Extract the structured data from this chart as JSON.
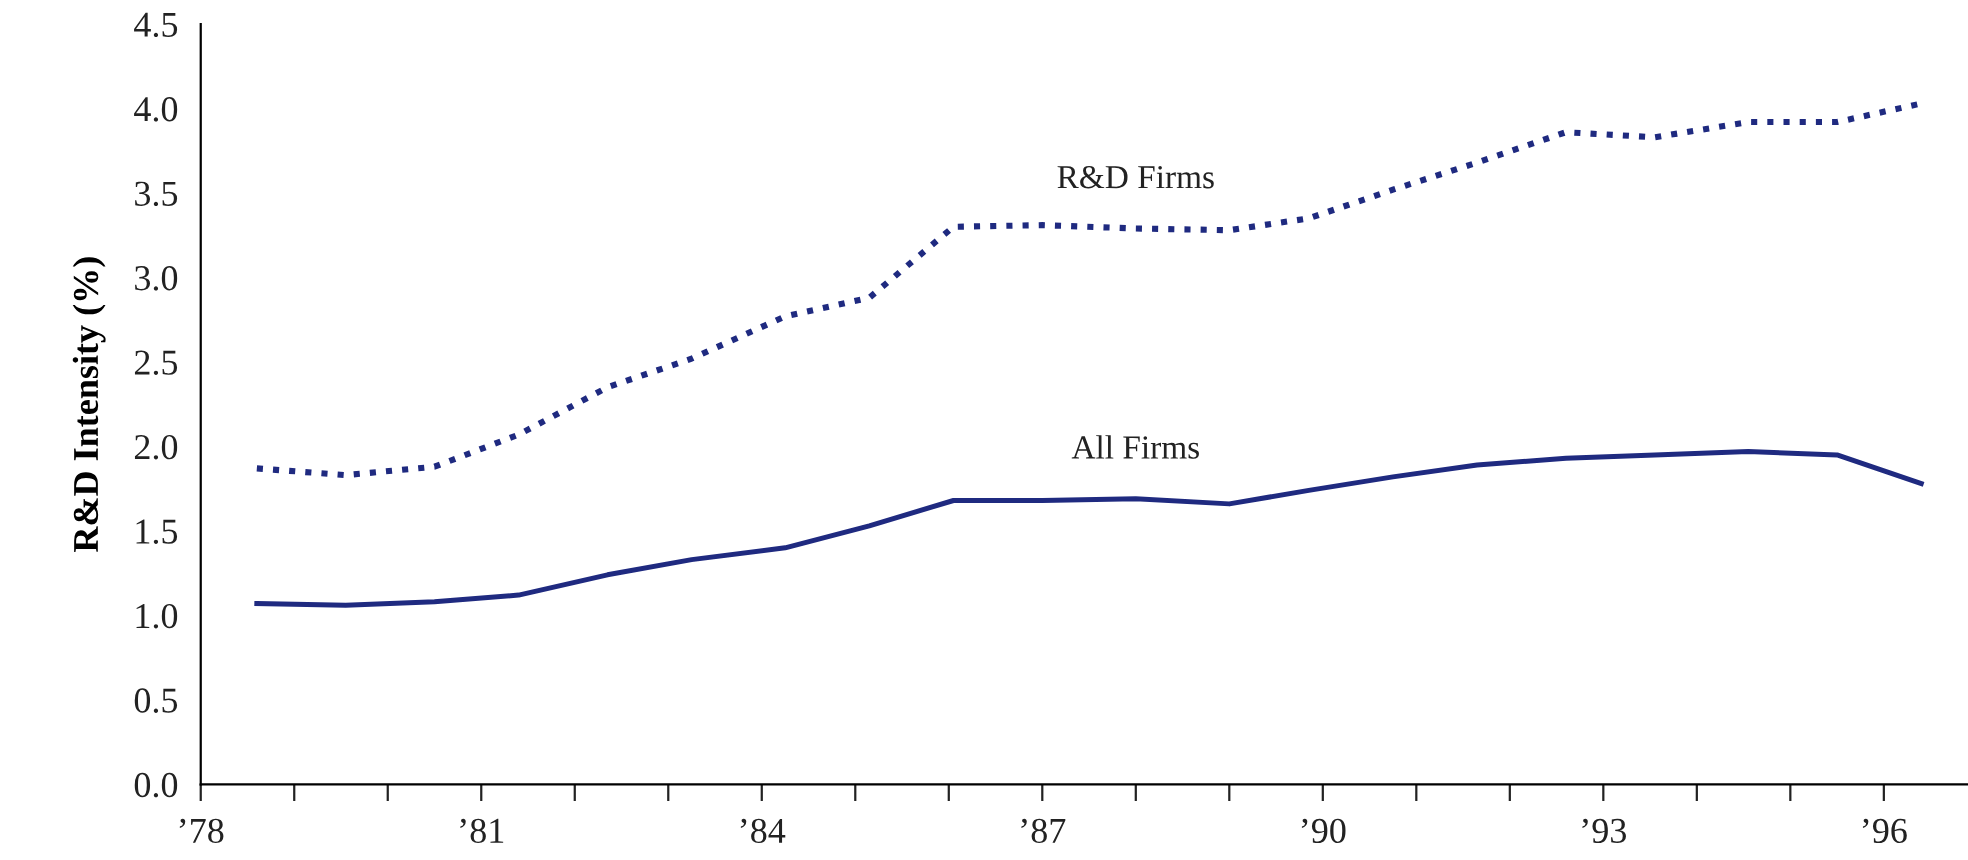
{
  "chart_data": {
    "type": "line",
    "ylabel": "R&D Intensity (%)",
    "xlim": [
      78,
      96.9
    ],
    "ylim": [
      0,
      4.5
    ],
    "xticks": [
      {
        "value": 78,
        "label": "’78"
      },
      {
        "value": 79,
        "label": null
      },
      {
        "value": 80,
        "label": null
      },
      {
        "value": 81,
        "label": "’81"
      },
      {
        "value": 82,
        "label": null
      },
      {
        "value": 83,
        "label": null
      },
      {
        "value": 84,
        "label": "’84"
      },
      {
        "value": 85,
        "label": null
      },
      {
        "value": 86,
        "label": null
      },
      {
        "value": 87,
        "label": "’87"
      },
      {
        "value": 88,
        "label": null
      },
      {
        "value": 89,
        "label": null
      },
      {
        "value": 90,
        "label": "’90"
      },
      {
        "value": 91,
        "label": null
      },
      {
        "value": 92,
        "label": null
      },
      {
        "value": 93,
        "label": "’93"
      },
      {
        "value": 94,
        "label": null
      },
      {
        "value": 95,
        "label": null
      },
      {
        "value": 96,
        "label": "’96"
      }
    ],
    "yticks": [
      {
        "value": 0,
        "label": "0.0"
      },
      {
        "value": 0.5,
        "label": "0.5"
      },
      {
        "value": 1,
        "label": "1.0"
      },
      {
        "value": 1.5,
        "label": "1.5"
      },
      {
        "value": 2,
        "label": "2.0"
      },
      {
        "value": 2.5,
        "label": "2.5"
      },
      {
        "value": 3,
        "label": "3.0"
      },
      {
        "value": 3.5,
        "label": "3.5"
      },
      {
        "value": 4,
        "label": "4.0"
      },
      {
        "value": 4.5,
        "label": "4.5"
      }
    ],
    "x": [
      78.6,
      79.55,
      80.5,
      81.4,
      82.35,
      83.25,
      84.25,
      85.15,
      86.05,
      87.0,
      88.0,
      89.0,
      89.85,
      90.75,
      91.65,
      92.6,
      93.55,
      94.55,
      95.5,
      96.4
    ],
    "grid": false,
    "legend": false,
    "series": [
      {
        "name": "R&D Firms",
        "color": "#1f2a80",
        "line_style": "dotted",
        "values": [
          1.87,
          1.83,
          1.88,
          2.07,
          2.35,
          2.52,
          2.77,
          2.88,
          3.3,
          3.31,
          3.29,
          3.28,
          3.35,
          3.52,
          3.68,
          3.86,
          3.83,
          3.92,
          3.92,
          4.03
        ]
      },
      {
        "name": "All Firms",
        "color": "#1f2a80",
        "line_style": "solid",
        "values": [
          1.07,
          1.06,
          1.08,
          1.12,
          1.24,
          1.33,
          1.4,
          1.53,
          1.68,
          1.68,
          1.69,
          1.66,
          1.74,
          1.82,
          1.89,
          1.93,
          1.95,
          1.97,
          1.95,
          1.78
        ]
      }
    ]
  }
}
